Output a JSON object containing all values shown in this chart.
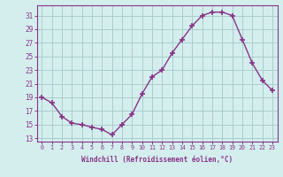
{
  "x": [
    0,
    1,
    2,
    3,
    4,
    5,
    6,
    7,
    8,
    9,
    10,
    11,
    12,
    13,
    14,
    15,
    16,
    17,
    18,
    19,
    20,
    21,
    22,
    23
  ],
  "y": [
    19,
    18.2,
    16.2,
    15.2,
    15.0,
    14.6,
    14.3,
    13.5,
    15.0,
    16.5,
    19.5,
    22.0,
    23.0,
    25.5,
    27.5,
    29.5,
    31.0,
    31.5,
    31.5,
    31.0,
    27.5,
    24.0,
    21.5,
    20.0
  ],
  "line_color": "#883388",
  "marker": "+",
  "marker_size": 4,
  "marker_lw": 1.2,
  "bg_color": "#d4eeee",
  "grid_color": "#aacccc",
  "xlabel": "Windchill (Refroidissement éolien,°C)",
  "xlabel_color": "#883388",
  "ylabel_ticks": [
    13,
    15,
    17,
    19,
    21,
    23,
    25,
    27,
    29,
    31
  ],
  "xtick_labels": [
    "0",
    "1",
    "2",
    "3",
    "4",
    "5",
    "6",
    "7",
    "8",
    "9",
    "10",
    "11",
    "12",
    "13",
    "14",
    "15",
    "16",
    "17",
    "18",
    "19",
    "20",
    "21",
    "22",
    "23"
  ],
  "ylim": [
    12.5,
    32.5
  ],
  "xlim": [
    -0.5,
    23.5
  ],
  "tick_color": "#883388",
  "spine_color": "#883388",
  "line_width": 1.0
}
